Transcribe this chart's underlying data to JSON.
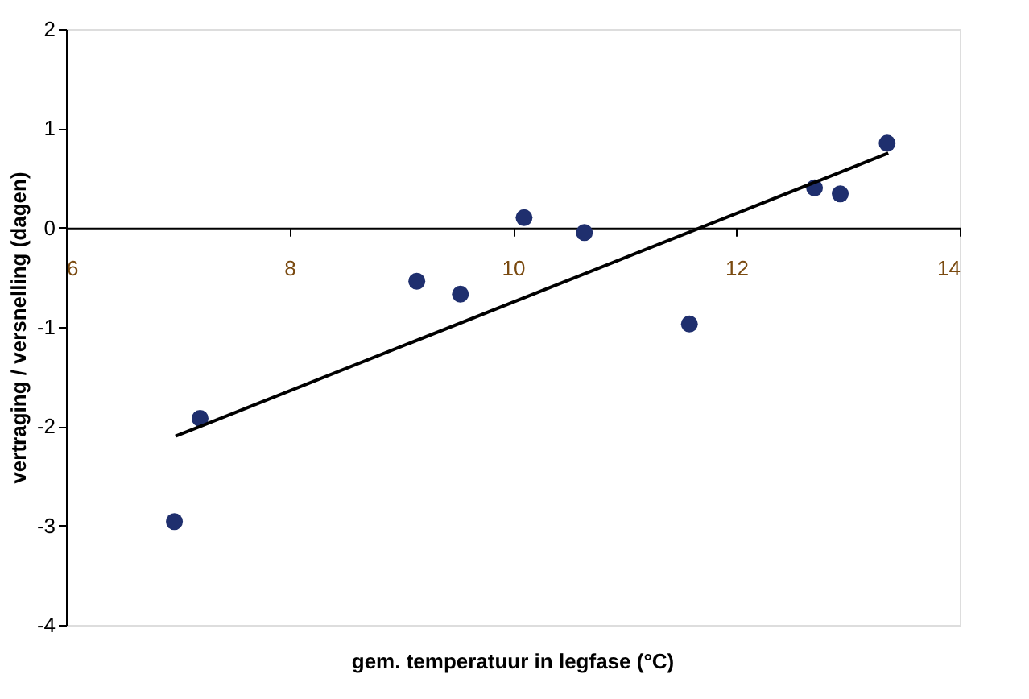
{
  "chart_data": {
    "type": "scatter",
    "xlabel": "gem. temperatuur in legfase (°C)",
    "ylabel": "vertraging / versnelling (dagen)",
    "series": [
      {
        "color": "#1f2f6e",
        "marker": "circle",
        "x": [
          6.97,
          7.2,
          9.14,
          9.53,
          10.1,
          10.64,
          11.58,
          12.7,
          12.93,
          13.35
        ],
        "values": [
          -2.96,
          -1.92,
          -0.54,
          -0.67,
          0.1,
          -0.05,
          -0.97,
          0.4,
          0.34,
          0.85
        ]
      },
      {
        "type": "line",
        "color": "#000000",
        "x": [
          6.98,
          13.36
        ],
        "values": [
          -2.1,
          0.75
        ]
      }
    ],
    "xlim": [
      6,
      14
    ],
    "xticks": [
      6,
      8,
      10,
      12,
      14
    ],
    "ylim": [
      -4,
      2
    ],
    "yticks": [
      -4,
      -3,
      -2,
      -1,
      0,
      1,
      2
    ],
    "grid": false
  }
}
